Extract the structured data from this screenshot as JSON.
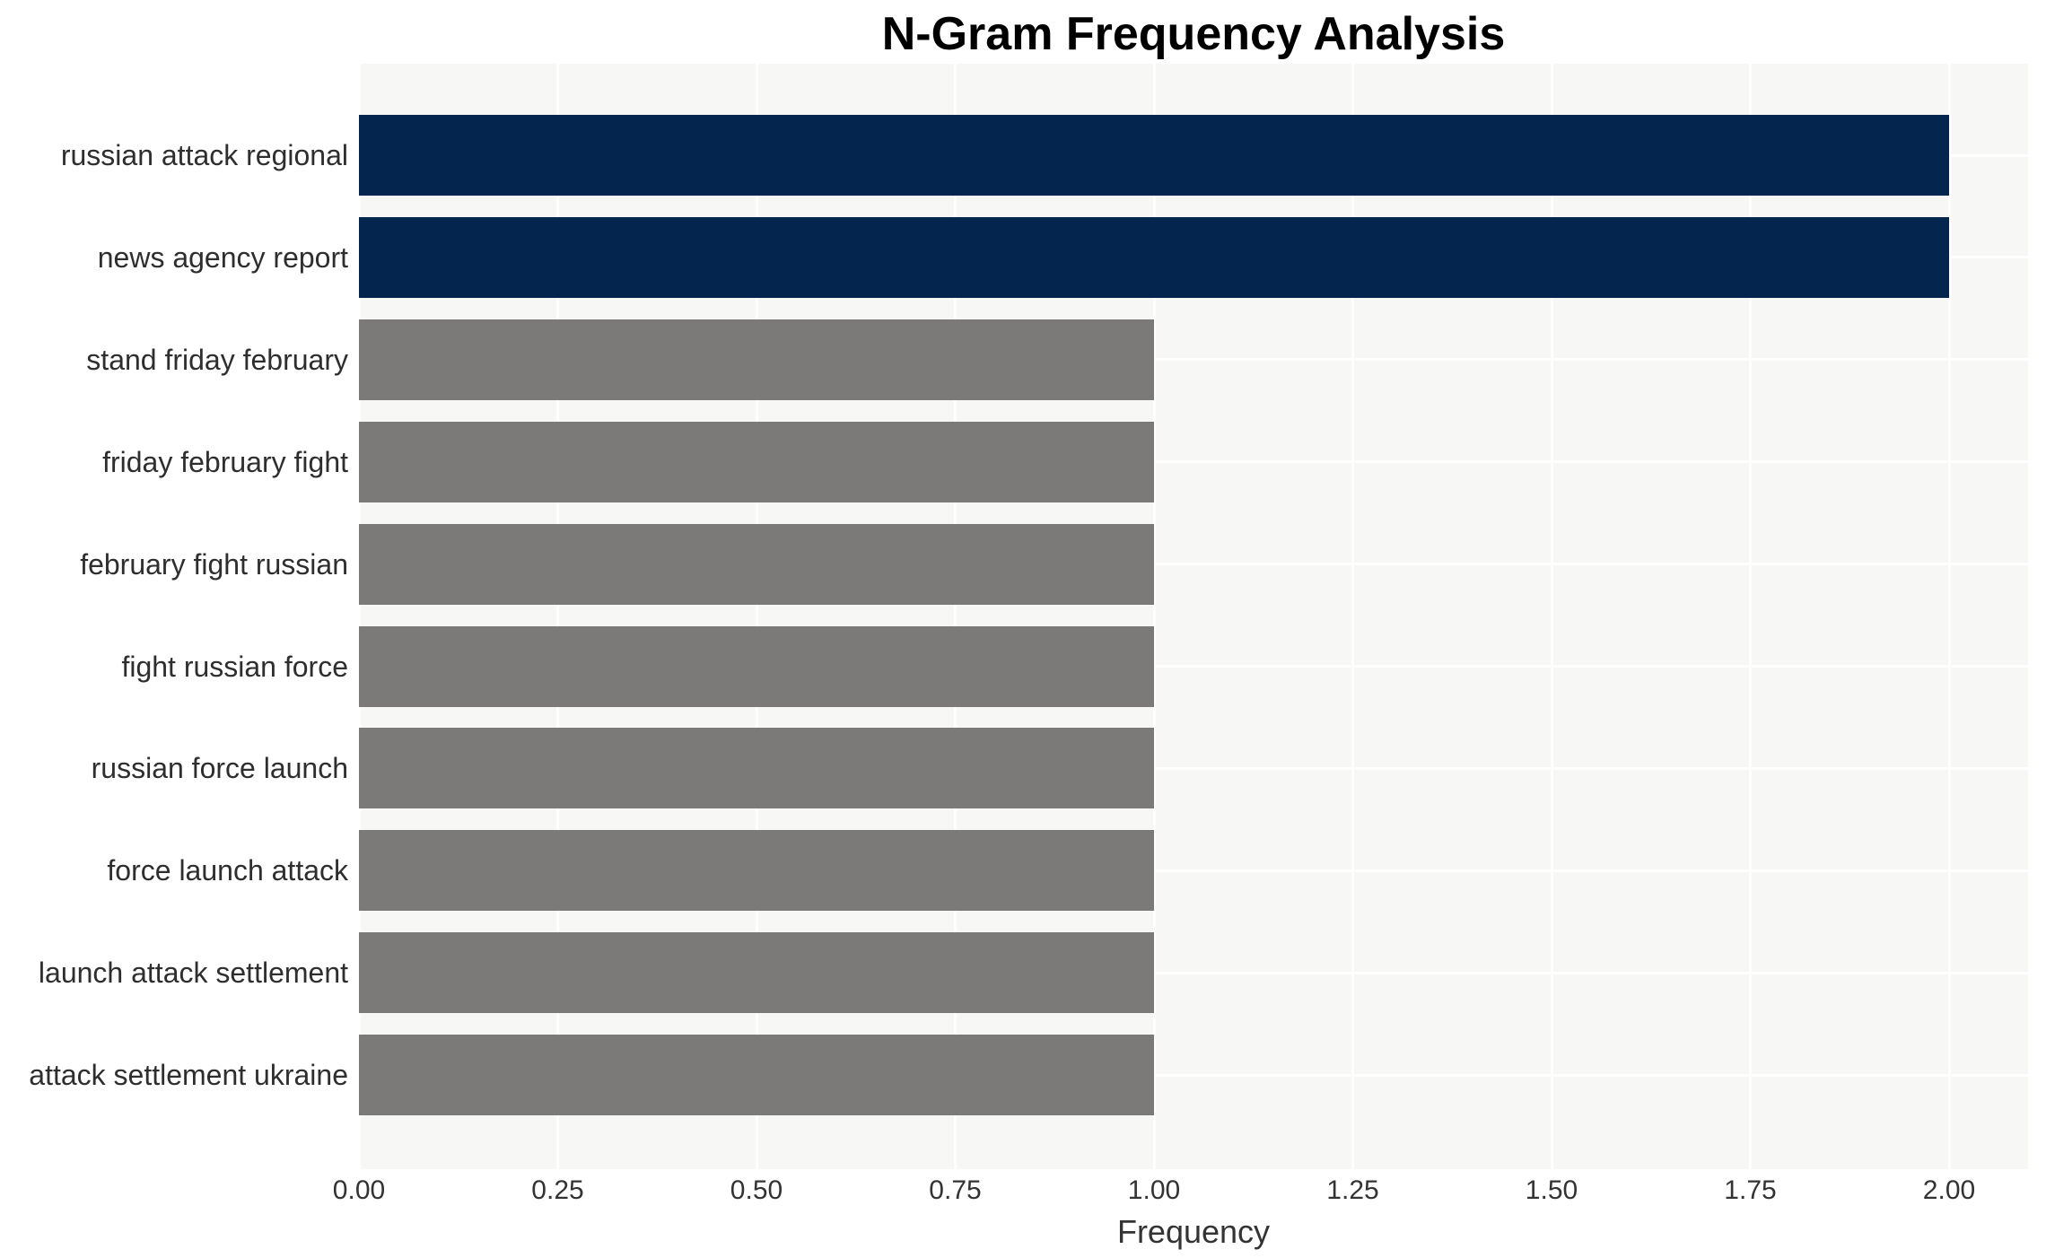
{
  "chart_data": {
    "type": "bar",
    "orientation": "horizontal",
    "title": "N-Gram Frequency Analysis",
    "xlabel": "Frequency",
    "ylabel": "",
    "categories": [
      "russian attack regional",
      "news agency report",
      "stand friday february",
      "friday february fight",
      "february fight russian",
      "fight russian force",
      "russian force launch",
      "force launch attack",
      "launch attack settlement",
      "attack settlement ukraine"
    ],
    "values": [
      2,
      2,
      1,
      1,
      1,
      1,
      1,
      1,
      1,
      1
    ],
    "bar_colors": [
      "#03254e",
      "#03254e",
      "#7b7a78",
      "#7b7a78",
      "#7b7a78",
      "#7b7a78",
      "#7b7a78",
      "#7b7a78",
      "#7b7a78",
      "#7b7a78"
    ],
    "xticks": {
      "values": [
        0,
        0.25,
        0.5,
        0.75,
        1.0,
        1.25,
        1.5,
        1.75,
        2.0
      ],
      "labels": [
        "0.00",
        "0.25",
        "0.50",
        "0.75",
        "1.00",
        "1.25",
        "1.50",
        "1.75",
        "2.00"
      ]
    },
    "xlim": [
      0,
      2.1
    ],
    "grid": {
      "show": true,
      "color": "#ffffff",
      "axis": "both",
      "layer": "below-bars"
    },
    "legend": null,
    "colors": {
      "highlight_bar": "#03254e",
      "default_bar": "#7b7a78",
      "plot_background": "#f7f7f6",
      "figure_background": "#ffffff",
      "gridline": "#ffffff",
      "title_text": "#000000",
      "axis_text": "#333333"
    }
  }
}
